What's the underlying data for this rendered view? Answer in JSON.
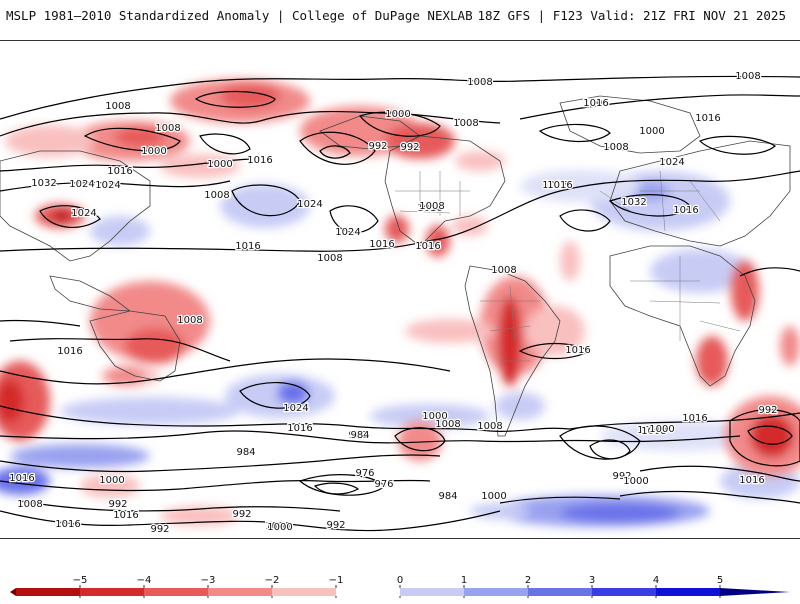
{
  "header": {
    "title": "MSLP 1981–2010 Standardized Anomaly | College of DuPage NEXLAB",
    "run_info": "18Z GFS | F123 Valid: 21Z FRI NOV 21 2025"
  },
  "isobar_labels": [
    "1008",
    "1008",
    "1008",
    "1008",
    "1000",
    "1000",
    "1000",
    "992",
    "992",
    "1016",
    "1016",
    "1024",
    "1032",
    "1024",
    "1024",
    "1008",
    "1024",
    "1016",
    "1016",
    "1008",
    "1008",
    "1000",
    "1008",
    "1016",
    "1024",
    "1032",
    "1016",
    "1016",
    "1008",
    "1008",
    "1016",
    "1016",
    "1016",
    "1016",
    "1008",
    "1024",
    "1016",
    "1016",
    "1008",
    "1000",
    "1008",
    "1016",
    "1000",
    "992",
    "984",
    "1000",
    "992",
    "976",
    "976",
    "984",
    "1000",
    "1000",
    "992",
    "1008",
    "1024",
    "1016",
    "1000",
    "992",
    "984",
    "1000",
    "992",
    "1008",
    "1016",
    "1016",
    "1016",
    "1016",
    "1008",
    "1000",
    "992",
    "992",
    "1008"
  ],
  "colorbar": {
    "ticks": [
      "−5",
      "−4",
      "−3",
      "−2",
      "−1",
      "0",
      "1",
      "2",
      "3",
      "4",
      "5"
    ],
    "colors": [
      "#7a0000",
      "#b40f0f",
      "#d42a2a",
      "#e65a5a",
      "#f28a8a",
      "#f9c0c0",
      "#ffffff",
      "#c8ccf5",
      "#9aa2f0",
      "#6a72ea",
      "#3a3ee2",
      "#1010d8",
      "#000080"
    ]
  }
}
